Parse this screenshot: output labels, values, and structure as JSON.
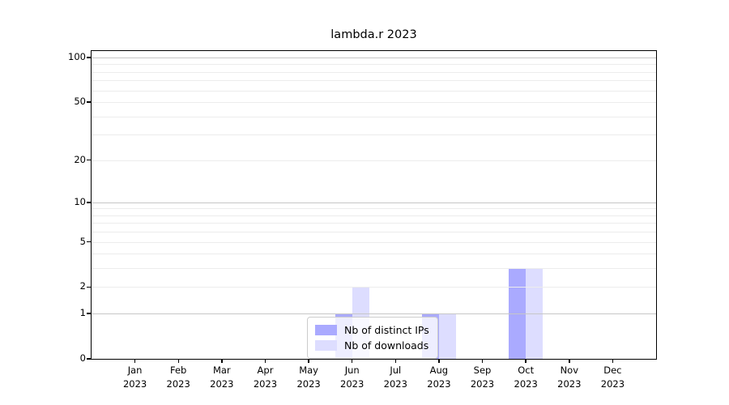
{
  "title": "lambda.r 2023",
  "colors": {
    "background": "#ffffff",
    "axis": "#000000",
    "major_grid": "#c6c6c6",
    "minor_grid": "#ececec",
    "legend_border": "#cccccc"
  },
  "chart_data": {
    "type": "bar",
    "title": "lambda.r 2023",
    "y_scale": "log10(1+x)",
    "ylim": [
      0,
      110
    ],
    "grid": true,
    "legend_position": "lower center",
    "year": "2023",
    "months": [
      "Jan",
      "Feb",
      "Mar",
      "Apr",
      "May",
      "Jun",
      "Jul",
      "Aug",
      "Sep",
      "Oct",
      "Nov",
      "Dec"
    ],
    "y_ticks": [
      0,
      1,
      2,
      5,
      10,
      20,
      50,
      100
    ],
    "major_grid_values": [
      1,
      10,
      100
    ],
    "minor_grid_values": [
      2,
      3,
      4,
      5,
      6,
      7,
      8,
      9,
      20,
      30,
      40,
      50,
      60,
      70,
      80,
      90
    ],
    "series": [
      {
        "name": "Nb of distinct IPs",
        "color": "#aaaaff",
        "values": [
          0,
          0,
          0,
          0,
          0,
          1,
          0,
          1,
          0,
          3,
          0,
          0
        ]
      },
      {
        "name": "Nb of downloads",
        "color": "#ddddff",
        "values": [
          0,
          0,
          0,
          0,
          0,
          2,
          0,
          1,
          0,
          3,
          0,
          0
        ]
      }
    ]
  }
}
